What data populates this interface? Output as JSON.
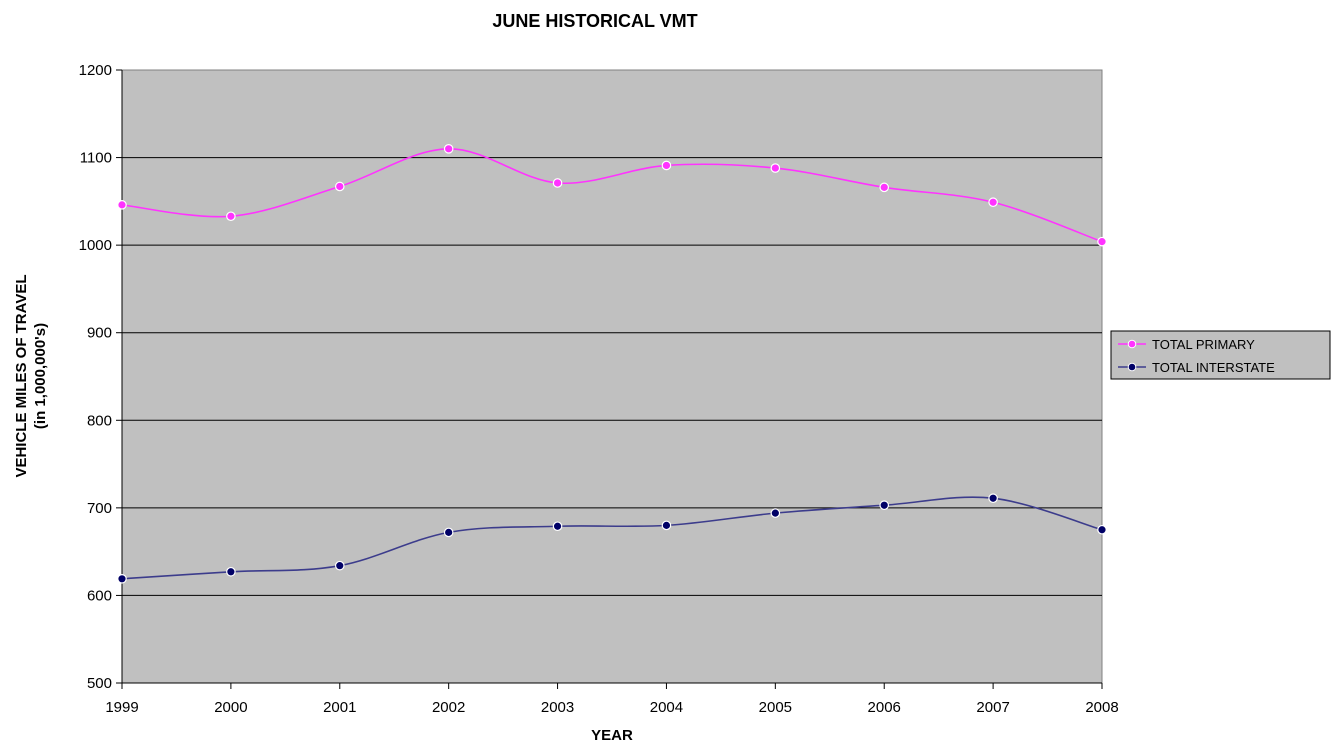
{
  "chart_data": {
    "type": "line",
    "title": "JUNE HISTORICAL VMT",
    "xlabel": "YEAR",
    "ylabel": [
      "VEHICLE MILES OF TRAVEL",
      "(in 1,000,000's)"
    ],
    "x": [
      "1999",
      "2000",
      "2001",
      "2002",
      "2003",
      "2004",
      "2005",
      "2006",
      "2007",
      "2008"
    ],
    "ylim": [
      500,
      1200
    ],
    "yticks": [
      500,
      600,
      700,
      800,
      900,
      1000,
      1100,
      1200
    ],
    "grid": true,
    "smooth": true,
    "legend_position": "right",
    "plot_background": "#c0c0c0",
    "series": [
      {
        "name": "TOTAL PRIMARY",
        "color": "#ff33ff",
        "marker_color": "#ff33ff",
        "values": [
          1046,
          1033,
          1067,
          1110,
          1071,
          1091,
          1088,
          1066,
          1049,
          1004
        ]
      },
      {
        "name": "TOTAL INTERSTATE",
        "color": "#3c3c8c",
        "marker_color": "#000066",
        "values": [
          619,
          627,
          634,
          672,
          679,
          680,
          694,
          703,
          711,
          675
        ]
      }
    ]
  }
}
